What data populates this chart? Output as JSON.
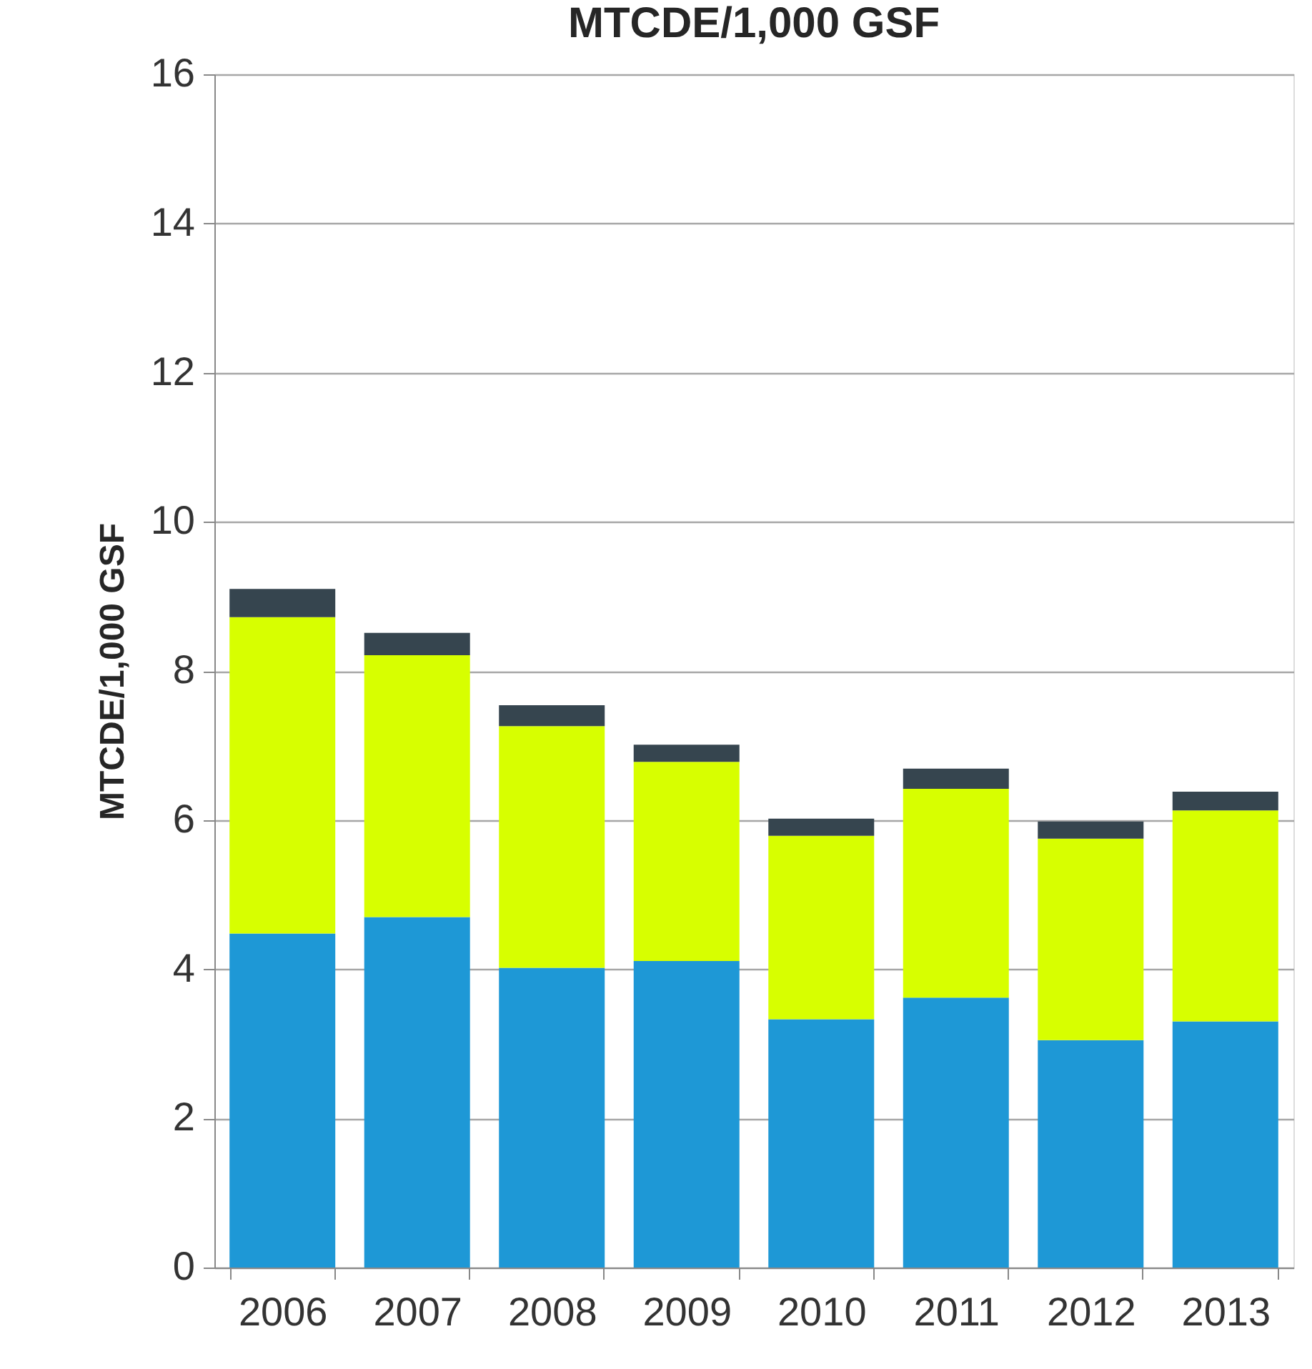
{
  "chart_data": {
    "type": "bar",
    "title": "MTCDE/1,000 GSF",
    "ylabel": "MTCDE/1,000 GSF",
    "stacked": true,
    "grid": "y",
    "legend": false,
    "categories": [
      "2006",
      "2007",
      "2008",
      "2009",
      "2010",
      "2011",
      "2012",
      "2013"
    ],
    "ylim": [
      0,
      16
    ],
    "yticks": [
      0,
      2,
      4,
      6,
      8,
      10,
      12,
      14,
      16
    ],
    "series": [
      {
        "color": "#1e98d6",
        "values": [
          4.48,
          4.7,
          4.02,
          4.11,
          3.33,
          3.62,
          3.05,
          3.3
        ]
      },
      {
        "color": "#d7ff00",
        "values": [
          4.24,
          3.51,
          3.24,
          2.67,
          2.46,
          2.8,
          2.7,
          2.83
        ]
      },
      {
        "color": "#36454f",
        "values": [
          0.38,
          0.3,
          0.28,
          0.23,
          0.23,
          0.27,
          0.23,
          0.25
        ]
      }
    ]
  }
}
